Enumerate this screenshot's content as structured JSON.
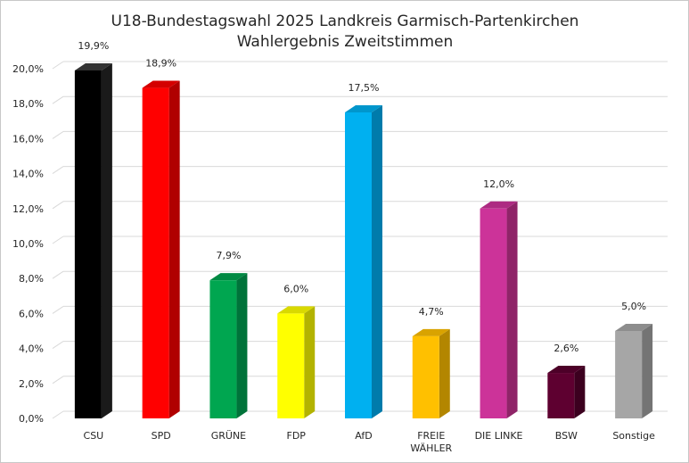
{
  "chart_data": {
    "type": "bar",
    "title": "U18-Bundestagswahl 2025 Landkreis Garmisch-Partenkirchen",
    "subtitle": "Wahlergebnis Zweitstimmen",
    "xlabel": "",
    "ylabel": "",
    "ylim": [
      0,
      20
    ],
    "ytick_step": 2,
    "ytick_labels": [
      "0,0%",
      "2,0%",
      "4,0%",
      "6,0%",
      "8,0%",
      "10,0%",
      "12,0%",
      "14,0%",
      "16,0%",
      "18,0%",
      "20,0%"
    ],
    "grid": true,
    "legend": "none",
    "categories": [
      "CSU",
      "SPD",
      "GRÜNE",
      "FDP",
      "AfD",
      "FREIE WÄHLER",
      "DIE LINKE",
      "BSW",
      "Sonstige"
    ],
    "category_lines": [
      [
        "CSU"
      ],
      [
        "SPD"
      ],
      [
        "GRÜNE"
      ],
      [
        "FDP"
      ],
      [
        "AfD"
      ],
      [
        "FREIE",
        "WÄHLER"
      ],
      [
        "DIE LINKE"
      ],
      [
        "BSW"
      ],
      [
        "Sonstige"
      ]
    ],
    "values": [
      19.9,
      18.9,
      7.9,
      6.0,
      17.5,
      4.7,
      12.0,
      2.6,
      5.0
    ],
    "value_labels": [
      "19,9%",
      "18,9%",
      "7,9%",
      "6,0%",
      "17,5%",
      "4,7%",
      "12,0%",
      "2,6%",
      "5,0%"
    ],
    "colors": [
      "#000000",
      "#ff0000",
      "#00a650",
      "#ffff00",
      "#00b0f0",
      "#ffc000",
      "#cc3399",
      "#5e0030",
      "#a6a6a6"
    ],
    "side_colors": [
      "#1a1a1a",
      "#b00000",
      "#00733a",
      "#b3b300",
      "#007bab",
      "#b38600",
      "#8f2468",
      "#3c001f",
      "#747474"
    ],
    "top_colors": [
      "#333333",
      "#d40000",
      "#008a43",
      "#d9d900",
      "#0096cc",
      "#d9a300",
      "#ad2b82",
      "#4d0028",
      "#8d8d8d"
    ]
  }
}
